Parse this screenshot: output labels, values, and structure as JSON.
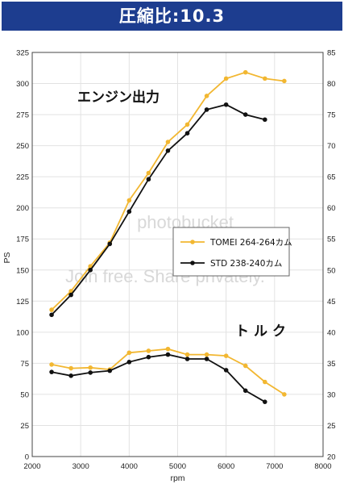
{
  "title": "圧縮比:10.3",
  "watermark": {
    "line1": "photobucket",
    "line2": "Join free. Share privately."
  },
  "chart_data": {
    "type": "line",
    "xlabel": "rpm",
    "ylabel_left": "PS",
    "xlim": [
      2000,
      8000
    ],
    "ylim_left": [
      0,
      325
    ],
    "ylim_right": [
      20,
      85
    ],
    "x_ticks": [
      2000,
      3000,
      4000,
      5000,
      6000,
      7000,
      8000
    ],
    "y_ticks_left": [
      0,
      25,
      50,
      75,
      100,
      125,
      150,
      175,
      200,
      225,
      250,
      275,
      300,
      325
    ],
    "y_ticks_right": [
      20,
      25,
      30,
      35,
      40,
      45,
      50,
      55,
      60,
      65,
      70,
      75,
      80,
      85
    ],
    "grid": true,
    "legend_position": "right-middle",
    "annotations": {
      "power": "エンジン出力",
      "torque": "トルク"
    },
    "series": [
      {
        "name": "TOMEI 264-264カム",
        "quantity": "power",
        "axis": "left",
        "color": "#f2b731",
        "x": [
          2400,
          2800,
          3200,
          3600,
          4000,
          4400,
          4800,
          5200,
          5600,
          6000,
          6400,
          6800,
          7200
        ],
        "y": [
          118,
          133,
          153,
          172,
          206,
          228,
          253,
          267,
          290,
          304,
          309,
          304,
          302
        ]
      },
      {
        "name": "STD 238-240カム",
        "quantity": "power",
        "axis": "left",
        "color": "#111111",
        "x": [
          2400,
          2800,
          3200,
          3600,
          4000,
          4400,
          4800,
          5200,
          5600,
          6000,
          6400,
          6800
        ],
        "y": [
          114,
          130,
          150,
          171,
          197,
          223,
          246,
          260,
          279,
          283,
          275,
          271
        ]
      },
      {
        "name": "TOMEI 264-264カム",
        "quantity": "torque",
        "axis": "left",
        "color": "#f2b731",
        "x": [
          2400,
          2800,
          3200,
          3600,
          4000,
          4400,
          4800,
          5200,
          5600,
          6000,
          6400,
          6800,
          7200
        ],
        "y": [
          74,
          71,
          71.5,
          70,
          83.5,
          85,
          86.5,
          82,
          82,
          81,
          73,
          60,
          50
        ]
      },
      {
        "name": "STD 238-240カム",
        "quantity": "torque",
        "axis": "left",
        "color": "#111111",
        "x": [
          2400,
          2800,
          3200,
          3600,
          4000,
          4400,
          4800,
          5200,
          5600,
          6000,
          6400,
          6800
        ],
        "y": [
          68,
          65,
          67.5,
          69,
          76,
          80,
          82,
          78.5,
          78.5,
          69.5,
          53,
          44
        ]
      }
    ],
    "legend": [
      {
        "label": "TOMEI 264-264カム",
        "color": "#f2b731"
      },
      {
        "label": "STD 238-240カム",
        "color": "#111111"
      }
    ]
  }
}
